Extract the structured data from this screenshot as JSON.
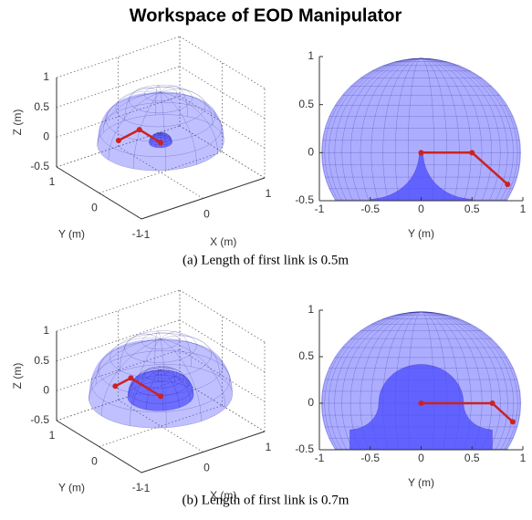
{
  "figure": {
    "title": "Workspace of EOD Manipulator",
    "captions": [
      "(a) Length of first link is 0.5m",
      "(b) Length of first link is 0.7m"
    ]
  },
  "chart_data": [
    {
      "type": "workspace3d",
      "xlabel": "X (m)",
      "ylabel": "Y (m)",
      "zlabel": "Z (m)",
      "xlim": [
        -1,
        1
      ],
      "ylim": [
        -1,
        1
      ],
      "zlim": [
        -0.5,
        1
      ],
      "xticks": [
        -1,
        0,
        1
      ],
      "yticks": [
        -1,
        0,
        1
      ],
      "zticks": [
        -0.5,
        0,
        0.5,
        1
      ],
      "grid": true,
      "workspace_color": "#4a4aff",
      "arm": {
        "color": "#cc2222",
        "x": [
          0,
          0,
          -0.2
        ],
        "y": [
          0,
          0.5,
          0.7
        ],
        "z": [
          0,
          0,
          -0.2
        ]
      }
    },
    {
      "type": "workspace2d",
      "xlabel": "Y (m)",
      "xlim": [
        -1,
        1
      ],
      "ylim": [
        -0.5,
        1
      ],
      "xticks": [
        -1,
        -0.5,
        0,
        0.5,
        1
      ],
      "yticks": [
        -0.5,
        0,
        0.5,
        1
      ],
      "workspace_color": "#4a4aff",
      "arm": {
        "color": "#cc2222",
        "x": [
          0,
          0.5,
          0.85
        ],
        "values": [
          0,
          0,
          -0.33
        ]
      }
    },
    {
      "type": "workspace3d",
      "xlabel": "X (m)",
      "ylabel": "Y (m)",
      "zlabel": "Z (m)",
      "xlim": [
        -1,
        1
      ],
      "ylim": [
        -1,
        1
      ],
      "zlim": [
        -0.5,
        1
      ],
      "xticks": [
        -1,
        0,
        1
      ],
      "yticks": [
        -1,
        0,
        1
      ],
      "zticks": [
        -0.5,
        0,
        0.5,
        1
      ],
      "grid": true,
      "workspace_color": "#4a4aff",
      "arm": {
        "color": "#cc2222",
        "x": [
          0,
          0,
          -0.15
        ],
        "y": [
          0,
          0.7,
          0.85
        ],
        "z": [
          0,
          0,
          -0.15
        ]
      }
    },
    {
      "type": "workspace2d",
      "xlabel": "Y (m)",
      "xlim": [
        -1,
        1
      ],
      "ylim": [
        -0.5,
        1
      ],
      "xticks": [
        -1,
        -0.5,
        0,
        0.5,
        1
      ],
      "yticks": [
        -0.5,
        0,
        0.5,
        1
      ],
      "workspace_color": "#4a4aff",
      "arm": {
        "color": "#cc2222",
        "x": [
          0,
          0.7,
          0.9
        ],
        "values": [
          0,
          0,
          -0.2
        ]
      }
    }
  ]
}
